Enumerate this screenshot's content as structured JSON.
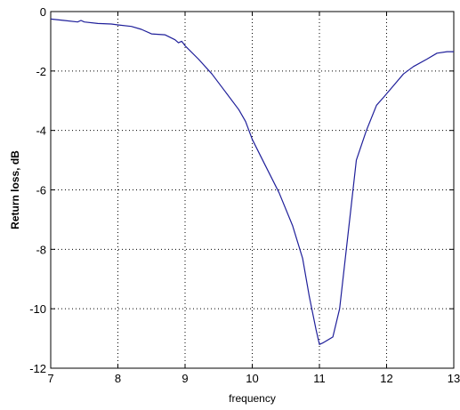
{
  "chart_data": {
    "type": "line",
    "title": "",
    "xlabel": "frequency",
    "ylabel": "Return loss, dB",
    "xlim": [
      7,
      13
    ],
    "ylim": [
      -12,
      0
    ],
    "xticks": [
      7,
      8,
      9,
      10,
      11,
      12,
      13
    ],
    "yticks": [
      0,
      -2,
      -4,
      -6,
      -8,
      -10,
      -12
    ],
    "grid": true,
    "grid_style": "dotted",
    "legend": "none",
    "series": [
      {
        "color": "#1f1f9a",
        "x": [
          7.0,
          7.2,
          7.4,
          7.45,
          7.5,
          7.7,
          7.9,
          8.0,
          8.2,
          8.35,
          8.5,
          8.7,
          8.85,
          8.9,
          8.95,
          9.0,
          9.2,
          9.4,
          9.6,
          9.8,
          9.9,
          10.0,
          10.2,
          10.4,
          10.6,
          10.75,
          10.85,
          10.95,
          11.0,
          11.05,
          11.2,
          11.3,
          11.45,
          11.55,
          11.7,
          11.85,
          11.95,
          12.1,
          12.25,
          12.4,
          12.6,
          12.75,
          12.9,
          13.0
        ],
        "y": [
          -0.25,
          -0.3,
          -0.35,
          -0.3,
          -0.35,
          -0.4,
          -0.42,
          -0.45,
          -0.5,
          -0.6,
          -0.75,
          -0.78,
          -0.95,
          -1.05,
          -1.0,
          -1.15,
          -1.6,
          -2.1,
          -2.7,
          -3.3,
          -3.7,
          -4.3,
          -5.2,
          -6.1,
          -7.2,
          -8.3,
          -9.6,
          -10.7,
          -11.2,
          -11.15,
          -10.95,
          -10.0,
          -7.0,
          -5.0,
          -4.0,
          -3.15,
          -2.9,
          -2.5,
          -2.1,
          -1.85,
          -1.6,
          -1.4,
          -1.35,
          -1.35
        ]
      }
    ]
  }
}
